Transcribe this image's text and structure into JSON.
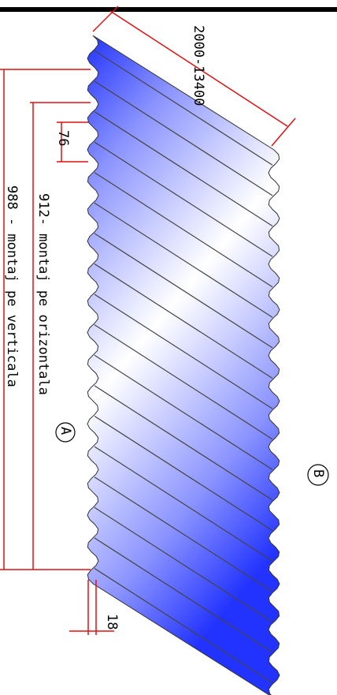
{
  "dimensions": {
    "length": "2000-13400",
    "pitch": "76",
    "width_horizontal": "912- montaj pe orizontala",
    "width_vertical": "988 - montaj pe verticala",
    "height": "18"
  },
  "labels": {
    "a": "A",
    "b": "B"
  }
}
